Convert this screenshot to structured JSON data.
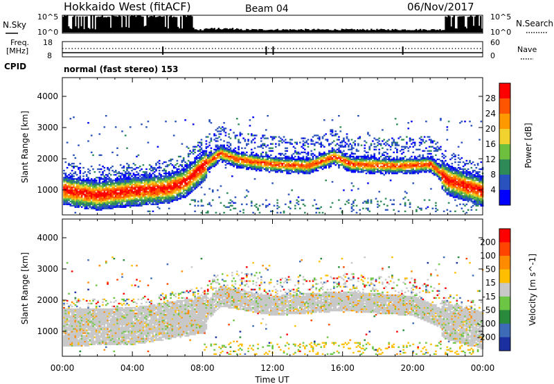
{
  "header": {
    "station": "Hokkaido West (fitACF)",
    "beam": "Beam 04",
    "date": "06/Nov/2017"
  },
  "side_labels": {
    "nsky": "N.Sky",
    "nsearch": "N.Search",
    "freq_line1": "Freq.",
    "freq_line2": "[MHz]",
    "nave": "Nave",
    "cpid": "CPID",
    "cpid_text": "normal (fast stereo) 153",
    "noise_top": "10^5",
    "noise_bottom": "10^0",
    "freq_top": "18",
    "freq_bottom": "8",
    "nave_top": "60",
    "nave_bottom": "0"
  },
  "axes": {
    "ylabel": "Slant Range [km]",
    "xlabel": "Time UT",
    "x_ticks": [
      "00:00",
      "04:00",
      "08:00",
      "12:00",
      "16:00",
      "20:00",
      "00:00"
    ],
    "y_ticks": [
      "1000",
      "2000",
      "3000",
      "4000"
    ]
  },
  "chart_data": [
    {
      "type": "heatmap",
      "title": "",
      "xlabel": "Time UT",
      "ylabel": "Slant Range [km]",
      "xlim": [
        0,
        24
      ],
      "ylim": [
        200,
        4600
      ],
      "colorbar": {
        "label": "Power [dB]",
        "ticks": [
          "4",
          "8",
          "12",
          "16",
          "20",
          "24",
          "28"
        ],
        "range": [
          0,
          32
        ],
        "colors": [
          "#0000ff",
          "#2a52be",
          "#2e8b57",
          "#6fbf3f",
          "#f2d22e",
          "#ff9900",
          "#ff5500",
          "#ff0000"
        ]
      },
      "echo_band": [
        {
          "t": 0,
          "r": 1000
        },
        {
          "t": 1,
          "r": 900
        },
        {
          "t": 2,
          "r": 830
        },
        {
          "t": 3,
          "r": 900
        },
        {
          "t": 4,
          "r": 960
        },
        {
          "t": 5,
          "r": 1000
        },
        {
          "t": 6,
          "r": 1050
        },
        {
          "t": 7,
          "r": 1250
        },
        {
          "t": 8,
          "r": 1750
        },
        {
          "t": 9,
          "r": 2150
        },
        {
          "t": 10,
          "r": 1950
        },
        {
          "t": 12,
          "r": 1800
        },
        {
          "t": 14,
          "r": 1750
        },
        {
          "t": 15.5,
          "r": 2050
        },
        {
          "t": 16.5,
          "r": 1800
        },
        {
          "t": 19,
          "r": 1750
        },
        {
          "t": 21,
          "r": 1800
        },
        {
          "t": 22,
          "r": 1300
        },
        {
          "t": 24,
          "r": 950
        }
      ]
    },
    {
      "type": "heatmap",
      "title": "",
      "xlabel": "Time UT",
      "ylabel": "Slant Range [km]",
      "xlim": [
        0,
        24
      ],
      "ylim": [
        200,
        4600
      ],
      "colorbar": {
        "label": "Velocity [m s^-1]",
        "ticks": [
          "200",
          "100",
          "50",
          "15",
          "-15",
          "-50",
          "-100",
          "-200"
        ],
        "range": [
          -250,
          250
        ],
        "colors": [
          "#1c2fa0",
          "#3d6bb8",
          "#2a8a3c",
          "#6cc644",
          "#c8c8c8",
          "#ffbf00",
          "#ff8c00",
          "#ff4500",
          "#ff0000"
        ]
      },
      "ground_scatter_band": [
        {
          "t": 0,
          "r": 1100
        },
        {
          "t": 4,
          "r": 1150
        },
        {
          "t": 8,
          "r": 1500
        },
        {
          "t": 9,
          "r": 2100
        },
        {
          "t": 12,
          "r": 1800
        },
        {
          "t": 16,
          "r": 1950
        },
        {
          "t": 20,
          "r": 1800
        },
        {
          "t": 22,
          "r": 1300
        },
        {
          "t": 24,
          "r": 1000
        }
      ]
    }
  ]
}
